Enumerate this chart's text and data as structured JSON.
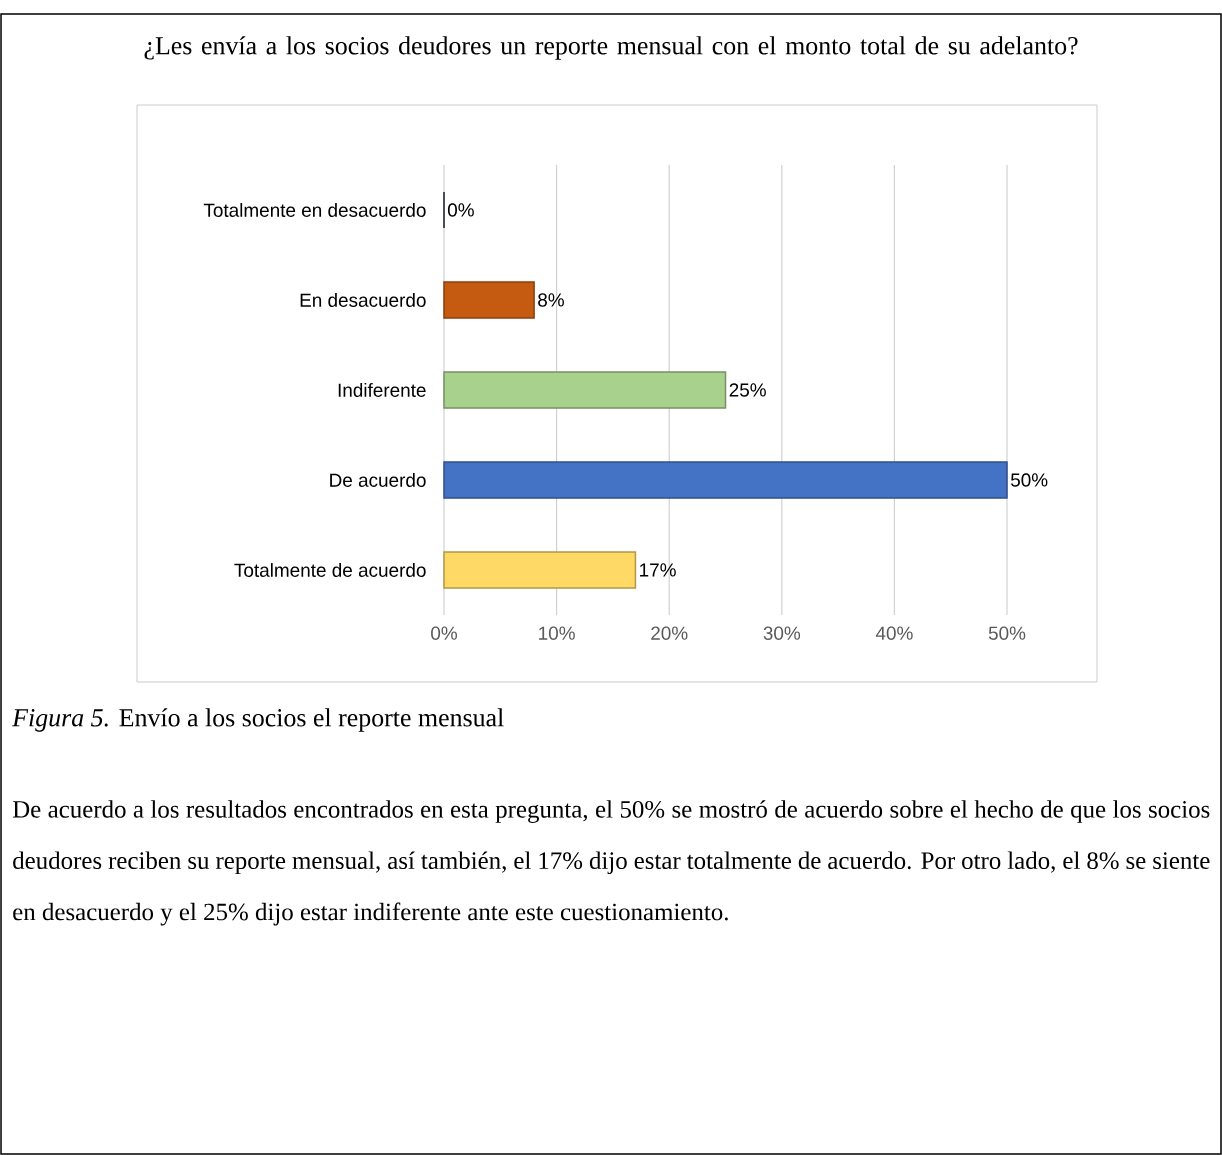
{
  "chart_data": {
    "type": "bar",
    "orientation": "horizontal",
    "title": "¿Les envía a los socios deudores un reporte mensual con el monto total de su adelanto?",
    "categories": [
      "Totalmente en desacuerdo",
      "En desacuerdo",
      "Indiferente",
      "De acuerdo",
      "Totalmente de acuerdo"
    ],
    "values": [
      0,
      8,
      25,
      50,
      17
    ],
    "value_labels": [
      "0%",
      "8%",
      "25%",
      "50%",
      "17%"
    ],
    "colors": [
      "#1f2a44",
      "#c55a11",
      "#a9d18e",
      "#4472c4",
      "#ffd966"
    ],
    "xlim": [
      0,
      50
    ],
    "xticks": [
      {
        "value": 0,
        "label": "0%"
      },
      {
        "value": 10,
        "label": "10%"
      },
      {
        "value": 20,
        "label": "20%"
      },
      {
        "value": 30,
        "label": "30%"
      },
      {
        "value": 40,
        "label": "40%"
      },
      {
        "value": 50,
        "label": "50%"
      }
    ],
    "grid": "x",
    "annotations": [
      "*Figura 5.* Envío a los socios el reporte mensual",
      "De acuerdo a los resultados encontrados en esta pregunta, el 50% se mostró de acuerdo sobre el hecho de que los socios deudores reciben su reporte mensual, así también, el 17% dijo estar totalmente de acuerdo. Por otro lado, el 8% se siente en desacuerdo y el 25% dijo estar indiferente ante este cuestionamiento."
    ]
  }
}
